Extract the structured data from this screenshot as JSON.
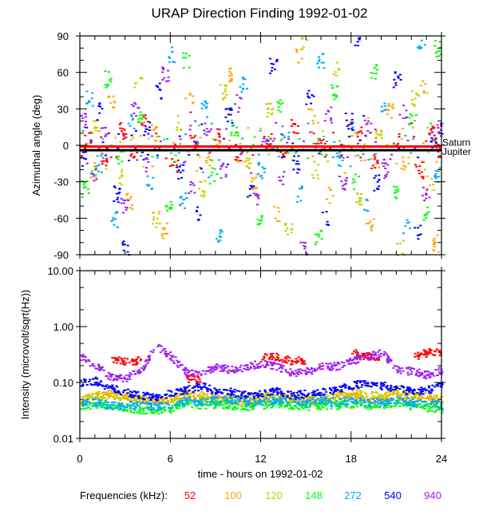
{
  "chart_data": [
    {
      "type": "scatter",
      "title": "URAP Direction Finding  1992-01-02",
      "ylabel": "Azimuthal angle (deg)",
      "xlim": [
        0,
        24
      ],
      "ylim": [
        -90,
        90
      ],
      "yticks": [
        "90",
        "60",
        "30",
        "0",
        "-30",
        "-60",
        "-90"
      ],
      "yticks_values": [
        90,
        60,
        30,
        0,
        -30,
        -60,
        -90
      ],
      "reference_lines": [
        {
          "name": "Saturn",
          "value": -1,
          "color": "#ff0000"
        },
        {
          "name": "Jupiter",
          "value": -4,
          "color": "#000000"
        }
      ],
      "series": [
        {
          "freq": "52",
          "color": "#ff0000",
          "points": [
            [
              0.5,
              5
            ],
            [
              1.5,
              -8
            ],
            [
              2.8,
              12
            ],
            [
              3.5,
              -3
            ],
            [
              4.2,
              20
            ],
            [
              6.3,
              -15
            ],
            [
              7.5,
              3
            ],
            [
              9,
              8
            ],
            [
              10.5,
              -6
            ],
            [
              12.4,
              4
            ],
            [
              13.5,
              -10
            ],
            [
              14.2,
              15
            ],
            [
              16,
              2
            ],
            [
              17.5,
              -5
            ],
            [
              18.6,
              9
            ],
            [
              19.5,
              -12
            ],
            [
              21,
              6
            ],
            [
              22.5,
              -20
            ],
            [
              23.3,
              10
            ],
            [
              23.8,
              -2
            ]
          ]
        },
        {
          "freq": "100",
          "color": "#ffa500",
          "points": [
            [
              0.8,
              -20
            ],
            [
              2,
              35
            ],
            [
              3.2,
              -45
            ],
            [
              4.8,
              10
            ],
            [
              5.5,
              -70
            ],
            [
              7.2,
              40
            ],
            [
              8.5,
              -10
            ],
            [
              10,
              60
            ],
            [
              11.5,
              -30
            ],
            [
              13,
              -55
            ],
            [
              14.5,
              75
            ],
            [
              15.3,
              25
            ],
            [
              16.5,
              -40
            ],
            [
              18,
              15
            ],
            [
              19.2,
              -65
            ],
            [
              20.5,
              30
            ],
            [
              21.5,
              -15
            ],
            [
              22.8,
              50
            ],
            [
              23.5,
              -80
            ]
          ]
        },
        {
          "freq": "120",
          "color": "#cccc00",
          "points": [
            [
              1,
              15
            ],
            [
              2.5,
              -25
            ],
            [
              3.8,
              50
            ],
            [
              5,
              -60
            ],
            [
              6.5,
              20
            ],
            [
              8,
              -35
            ],
            [
              9.5,
              45
            ],
            [
              11,
              -15
            ],
            [
              12.5,
              30
            ],
            [
              13.8,
              -70
            ],
            [
              14.8,
              85
            ],
            [
              15.5,
              -20
            ],
            [
              17,
              65
            ],
            [
              18.5,
              -45
            ],
            [
              19.8,
              10
            ],
            [
              21.2,
              -85
            ],
            [
              22.2,
              40
            ],
            [
              23.2,
              -30
            ]
          ]
        },
        {
          "freq": "148",
          "color": "#00ff00",
          "points": [
            [
              0.3,
              -35
            ],
            [
              1.8,
              55
            ],
            [
              2.6,
              -10
            ],
            [
              4,
              25
            ],
            [
              5.8,
              -50
            ],
            [
              7,
              70
            ],
            [
              8.8,
              -25
            ],
            [
              10.2,
              15
            ],
            [
              11.8,
              -60
            ],
            [
              13.2,
              35
            ],
            [
              14,
              -5
            ],
            [
              15.8,
              -75
            ],
            [
              16.8,
              45
            ],
            [
              18.2,
              -30
            ],
            [
              19.5,
              60
            ],
            [
              20.8,
              -40
            ],
            [
              22,
              20
            ],
            [
              23,
              -55
            ],
            [
              23.7,
              80
            ]
          ]
        },
        {
          "freq": "272",
          "color": "#00aaff",
          "points": [
            [
              0.6,
              40
            ],
            [
              1.3,
              -15
            ],
            [
              2.2,
              -60
            ],
            [
              3.4,
              20
            ],
            [
              4.6,
              -30
            ],
            [
              6,
              75
            ],
            [
              6.8,
              -45
            ],
            [
              8.2,
              30
            ],
            [
              9.2,
              -75
            ],
            [
              10.8,
              50
            ],
            [
              12,
              -20
            ],
            [
              13.6,
              10
            ],
            [
              14.6,
              -40
            ],
            [
              15.9,
              70
            ],
            [
              17.2,
              -10
            ],
            [
              18.8,
              -50
            ],
            [
              20,
              35
            ],
            [
              21.6,
              -65
            ],
            [
              22.6,
              85
            ],
            [
              23.6,
              -25
            ]
          ]
        },
        {
          "freq": "540",
          "color": "#0000ff",
          "points": [
            [
              0.2,
              -10
            ],
            [
              1.2,
              30
            ],
            [
              2.4,
              -40
            ],
            [
              3,
              -85
            ],
            [
              4.4,
              15
            ],
            [
              5.2,
              45
            ],
            [
              6.6,
              -20
            ],
            [
              7.8,
              -55
            ],
            [
              9.8,
              25
            ],
            [
              11.2,
              -35
            ],
            [
              12.8,
              65
            ],
            [
              14.3,
              -15
            ],
            [
              15.2,
              40
            ],
            [
              16.2,
              -60
            ],
            [
              17.8,
              20
            ],
            [
              18.4,
              85
            ],
            [
              19.6,
              -30
            ],
            [
              21,
              55
            ],
            [
              22.4,
              -70
            ],
            [
              23.4,
              5
            ]
          ]
        },
        {
          "freq": "940",
          "color": "#a020f0",
          "points": [
            [
              0.1,
              20
            ],
            [
              0.9,
              -25
            ],
            [
              1.6,
              10
            ],
            [
              2.9,
              -50
            ],
            [
              3.6,
              30
            ],
            [
              4.5,
              -15
            ],
            [
              5.6,
              60
            ],
            [
              7.3,
              -35
            ],
            [
              8.4,
              15
            ],
            [
              9.4,
              -20
            ],
            [
              10.4,
              35
            ],
            [
              11.6,
              -45
            ],
            [
              12.2,
              5
            ],
            [
              13.4,
              -25
            ],
            [
              14.8,
              -85
            ],
            [
              16.4,
              25
            ],
            [
              17.4,
              -30
            ],
            [
              19,
              15
            ],
            [
              20.2,
              -20
            ],
            [
              21.4,
              30
            ],
            [
              22.9,
              -40
            ],
            [
              23.9,
              12
            ]
          ]
        }
      ]
    },
    {
      "type": "scatter",
      "ylabel": "Intensity (microvolt/sqrt(Hz))",
      "xlabel": "time - hours on 1992-01-02",
      "xlim": [
        0,
        24
      ],
      "ylim": [
        0.01,
        10
      ],
      "yscale": "log",
      "yticks": [
        "10.00",
        "1.00",
        "0.10",
        "0.01"
      ],
      "yticks_values": [
        10,
        1,
        0.1,
        0.01
      ],
      "xticks": [
        "0",
        "6",
        "12",
        "18",
        "24"
      ],
      "xticks_values": [
        0,
        6,
        12,
        18,
        24
      ],
      "x_hours": [
        0,
        1,
        2,
        3,
        4,
        5,
        6,
        7,
        8,
        9,
        10,
        11,
        12,
        13,
        14,
        15,
        16,
        17,
        18,
        19,
        20,
        21,
        22,
        23,
        24
      ],
      "series": [
        {
          "freq": "52",
          "color": "#ff0000",
          "values": [
            null,
            null,
            0.25,
            0.25,
            null,
            null,
            null,
            0.12,
            null,
            null,
            null,
            null,
            0.28,
            0.3,
            0.25,
            null,
            null,
            null,
            0.35,
            0.3,
            null,
            null,
            0.3,
            0.35,
            null
          ]
        },
        {
          "freq": "100",
          "color": "#ffa500",
          "values": [
            0.045,
            0.06,
            0.065,
            0.06,
            0.05,
            0.045,
            0.05,
            0.06,
            0.05,
            0.055,
            0.05,
            0.045,
            0.05,
            0.055,
            0.05,
            0.05,
            0.05,
            0.055,
            0.06,
            0.05,
            0.05,
            0.06,
            0.05,
            0.055,
            0.045
          ]
        },
        {
          "freq": "120",
          "color": "#cccc00",
          "values": [
            0.05,
            0.06,
            0.06,
            0.055,
            0.05,
            0.05,
            0.05,
            0.07,
            0.06,
            0.05,
            0.055,
            0.05,
            0.06,
            0.06,
            0.055,
            0.05,
            0.05,
            0.06,
            0.07,
            0.06,
            0.06,
            0.08,
            0.06,
            0.06,
            0.05
          ]
        },
        {
          "freq": "148",
          "color": "#00ff00",
          "values": [
            0.04,
            0.04,
            0.038,
            0.036,
            0.033,
            0.032,
            0.035,
            0.045,
            0.04,
            0.042,
            0.04,
            0.038,
            0.04,
            0.042,
            0.04,
            0.038,
            0.04,
            0.04,
            0.042,
            0.04,
            0.04,
            0.045,
            0.038,
            0.036,
            0.035
          ]
        },
        {
          "freq": "272",
          "color": "#00aaff",
          "values": [
            0.045,
            0.045,
            0.04,
            0.04,
            0.04,
            0.038,
            0.04,
            0.05,
            0.045,
            0.05,
            0.05,
            0.045,
            0.045,
            0.05,
            0.045,
            0.045,
            0.05,
            0.045,
            0.05,
            0.045,
            0.045,
            0.05,
            0.045,
            0.045,
            0.04
          ]
        },
        {
          "freq": "540",
          "color": "#0000ff",
          "values": [
            0.1,
            0.11,
            0.08,
            0.07,
            0.06,
            0.055,
            0.065,
            0.075,
            0.09,
            0.07,
            0.07,
            0.06,
            0.065,
            0.075,
            0.06,
            0.065,
            0.07,
            0.075,
            0.09,
            0.1,
            0.09,
            0.08,
            0.07,
            0.075,
            0.09
          ]
        },
        {
          "freq": "940",
          "color": "#a020f0",
          "values": [
            0.3,
            0.2,
            0.13,
            0.12,
            0.17,
            0.45,
            0.3,
            0.16,
            0.15,
            0.2,
            0.17,
            0.2,
            0.22,
            0.2,
            0.15,
            0.16,
            0.2,
            0.2,
            0.25,
            0.3,
            0.35,
            0.18,
            0.16,
            0.14,
            0.17
          ]
        }
      ]
    }
  ],
  "legend": {
    "label": "Frequencies (kHz):",
    "items": [
      {
        "label": "52",
        "color": "#ff0000"
      },
      {
        "label": "100",
        "color": "#ffa500"
      },
      {
        "label": "120",
        "color": "#cccc00"
      },
      {
        "label": "148",
        "color": "#00ff00"
      },
      {
        "label": "272",
        "color": "#00aaff"
      },
      {
        "label": "540",
        "color": "#0000ff"
      },
      {
        "label": "940",
        "color": "#a020f0"
      }
    ]
  }
}
